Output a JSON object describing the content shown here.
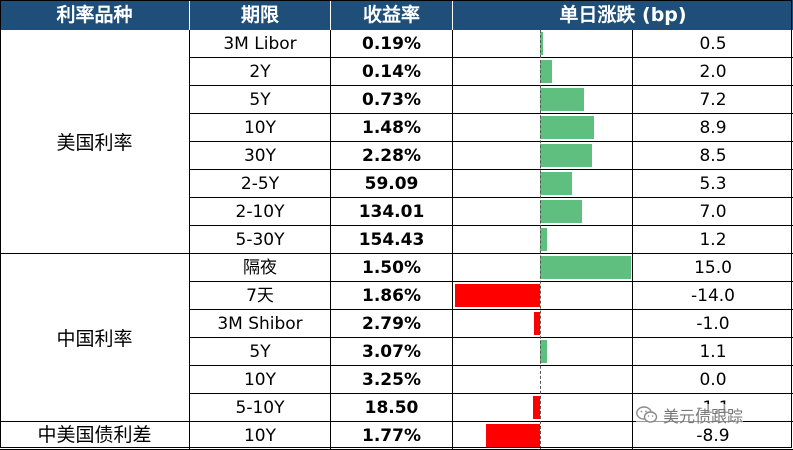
{
  "headers": {
    "col_type": "利率品种",
    "col_term": "期限",
    "col_yield": "收益率",
    "col_change": "单日涨跌 (bp)"
  },
  "groups": [
    {
      "label": "美国利率",
      "start": 0,
      "count": 8
    },
    {
      "label": "中国利率",
      "start": 8,
      "count": 6
    },
    {
      "label": "中美国债利差",
      "start": 14,
      "count": 1
    }
  ],
  "rows": [
    {
      "term": "3M Libor",
      "yield": "0.19%",
      "change_label": "0.5",
      "change": 0.5
    },
    {
      "term": "2Y",
      "yield": "0.14%",
      "change_label": "2.0",
      "change": 2.0
    },
    {
      "term": "5Y",
      "yield": "0.73%",
      "change_label": "7.2",
      "change": 7.2
    },
    {
      "term": "10Y",
      "yield": "1.48%",
      "change_label": "8.9",
      "change": 8.9
    },
    {
      "term": "30Y",
      "yield": "2.28%",
      "change_label": "8.5",
      "change": 8.5
    },
    {
      "term": "2-5Y",
      "yield": "59.09",
      "change_label": "5.3",
      "change": 5.3
    },
    {
      "term": "2-10Y",
      "yield": "134.01",
      "change_label": "7.0",
      "change": 7.0
    },
    {
      "term": "5-30Y",
      "yield": "154.43",
      "change_label": "1.2",
      "change": 1.2
    },
    {
      "term": "隔夜",
      "yield": "1.50%",
      "change_label": "15.0",
      "change": 15.0
    },
    {
      "term": "7天",
      "yield": "1.86%",
      "change_label": "-14.0",
      "change": -14.0
    },
    {
      "term": "3M Shibor",
      "yield": "2.79%",
      "change_label": "-1.0",
      "change": -1.0
    },
    {
      "term": "5Y",
      "yield": "3.07%",
      "change_label": "1.1",
      "change": 1.1
    },
    {
      "term": "10Y",
      "yield": "3.25%",
      "change_label": "0.0",
      "change": 0.0
    },
    {
      "term": "5-10Y",
      "yield": "18.50",
      "change_label": "-1.1",
      "change": -1.1
    },
    {
      "term": "10Y",
      "yield": "1.77%",
      "change_label": "-8.9",
      "change": -8.9
    }
  ],
  "bar_scale_max": 15,
  "colors": {
    "header_bg": "#1f4e79",
    "positive": "#5fbf7f",
    "negative": "#ff0000"
  },
  "watermark": {
    "text": "美元债跟踪",
    "icon": "wechat-icon"
  }
}
